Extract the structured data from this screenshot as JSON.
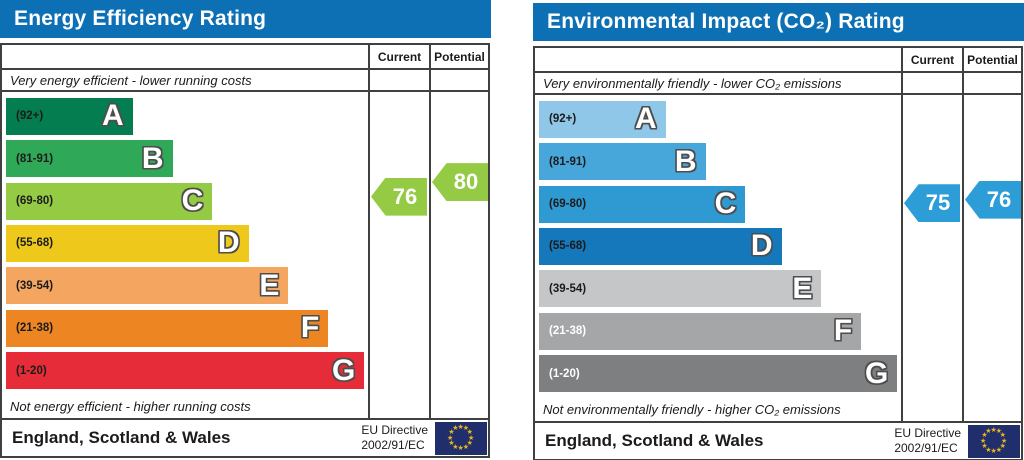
{
  "header_color": "#0d70b5",
  "border_color": "#404040",
  "eu_flag": {
    "background": "#202f6b",
    "star_color": "#e9b41f"
  },
  "chart_data": [
    {
      "type": "bar",
      "title": "Energy Efficiency Rating",
      "columns": [
        "Current",
        "Potential"
      ],
      "top_caption": "Very energy efficient - lower running costs",
      "bottom_caption": "Not energy efficient - higher running costs",
      "bands": [
        {
          "letter": "A",
          "range_label": "(92+)",
          "min": 92,
          "max": 100,
          "color": "#047d50",
          "label_color": "#1b1b1b",
          "width_pct": 35
        },
        {
          "letter": "B",
          "range_label": "(81-91)",
          "min": 81,
          "max": 91,
          "color": "#2fa857",
          "label_color": "#1b1b1b",
          "width_pct": 46
        },
        {
          "letter": "C",
          "range_label": "(69-80)",
          "min": 69,
          "max": 80,
          "color": "#94ca44",
          "label_color": "#1b1b1b",
          "width_pct": 57
        },
        {
          "letter": "D",
          "range_label": "(55-68)",
          "min": 55,
          "max": 68,
          "color": "#eec91c",
          "label_color": "#1b1b1b",
          "width_pct": 67
        },
        {
          "letter": "E",
          "range_label": "(39-54)",
          "min": 39,
          "max": 54,
          "color": "#f4a661",
          "label_color": "#1b1b1b",
          "width_pct": 78
        },
        {
          "letter": "F",
          "range_label": "(21-38)",
          "min": 21,
          "max": 38,
          "color": "#ee8523",
          "label_color": "#1b1b1b",
          "width_pct": 89
        },
        {
          "letter": "G",
          "range_label": "(1-20)",
          "min": 1,
          "max": 20,
          "color": "#e62b39",
          "label_color": "#1b1b1b",
          "width_pct": 99
        }
      ],
      "current": 76,
      "potential": 80,
      "arrow_color": "#94ca44",
      "footer": {
        "region": "England, Scotland & Wales",
        "directive": [
          "EU Directive",
          "2002/91/EC"
        ]
      }
    },
    {
      "type": "bar",
      "title": "Environmental Impact (CO₂) Rating",
      "columns": [
        "Current",
        "Potential"
      ],
      "top_caption": "Very environmentally friendly - lower CO₂ emissions",
      "bottom_caption": "Not environmentally friendly - higher CO₂ emissions",
      "bands": [
        {
          "letter": "A",
          "range_label": "(92+)",
          "min": 92,
          "max": 100,
          "color": "#8ec7e8",
          "label_color": "#1b1b1b",
          "width_pct": 35
        },
        {
          "letter": "B",
          "range_label": "(81-91)",
          "min": 81,
          "max": 91,
          "color": "#47a7db",
          "label_color": "#1b1b1b",
          "width_pct": 46
        },
        {
          "letter": "C",
          "range_label": "(69-80)",
          "min": 69,
          "max": 80,
          "color": "#2f99d2",
          "label_color": "#1b1b1b",
          "width_pct": 57
        },
        {
          "letter": "D",
          "range_label": "(55-68)",
          "min": 55,
          "max": 68,
          "color": "#1478ba",
          "label_color": "#1b1b1b",
          "width_pct": 67
        },
        {
          "letter": "E",
          "range_label": "(39-54)",
          "min": 39,
          "max": 54,
          "color": "#c5c6c8",
          "label_color": "#1b1b1b",
          "width_pct": 78
        },
        {
          "letter": "F",
          "range_label": "(21-38)",
          "min": 21,
          "max": 38,
          "color": "#a5a6a8",
          "label_color": "#ffffff",
          "width_pct": 89
        },
        {
          "letter": "G",
          "range_label": "(1-20)",
          "min": 1,
          "max": 20,
          "color": "#7e7f81",
          "label_color": "#ffffff",
          "width_pct": 99
        }
      ],
      "current": 75,
      "potential": 76,
      "arrow_color": "#2d9dd8",
      "footer": {
        "region": "England, Scotland & Wales",
        "directive": [
          "EU Directive",
          "2002/91/EC"
        ]
      }
    }
  ]
}
